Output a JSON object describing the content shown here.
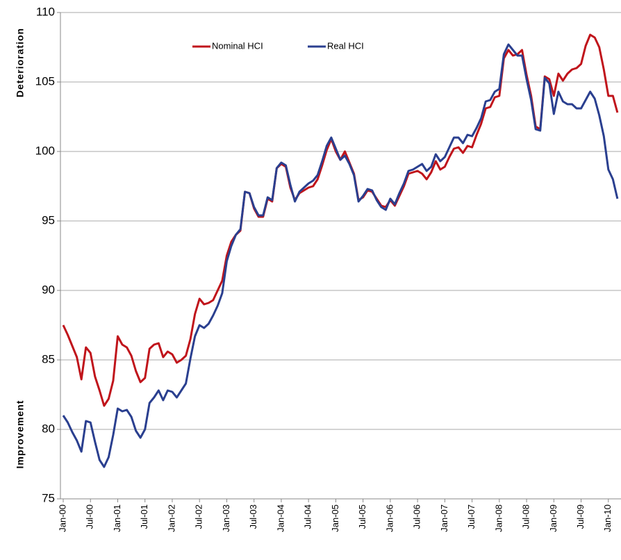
{
  "chart_data": {
    "type": "line",
    "axis_labels": [
      "Deterioration",
      "Improvement"
    ],
    "categories": [
      "Jan-00",
      null,
      null,
      null,
      null,
      null,
      "Jul-00",
      null,
      null,
      null,
      null,
      null,
      "Jan-01",
      null,
      null,
      null,
      null,
      null,
      "Jul-01",
      null,
      null,
      null,
      null,
      null,
      "Jan-02",
      null,
      null,
      null,
      null,
      null,
      "Jul-02",
      null,
      null,
      null,
      null,
      null,
      "Jan-03",
      null,
      null,
      null,
      null,
      null,
      "Jul-03",
      null,
      null,
      null,
      null,
      null,
      "Jan-04",
      null,
      null,
      null,
      null,
      null,
      "Jul-04",
      null,
      null,
      null,
      null,
      null,
      "Jan-05",
      null,
      null,
      null,
      null,
      null,
      "Jul-05",
      null,
      null,
      null,
      null,
      null,
      "Jan-06",
      null,
      null,
      null,
      null,
      null,
      "Jul-06",
      null,
      null,
      null,
      null,
      null,
      "Jan-07",
      null,
      null,
      null,
      null,
      null,
      "Jul-07",
      null,
      null,
      null,
      null,
      null,
      "Jan-08",
      null,
      null,
      null,
      null,
      null,
      "Jul-08",
      null,
      null,
      null,
      null,
      null,
      "Jan-09",
      null,
      null,
      null,
      null,
      null,
      "Jul-09",
      null,
      null,
      null,
      null,
      null,
      "Jan-10",
      null,
      null
    ],
    "series": [
      {
        "name": "Nominal HCI",
        "color": "#c0141b",
        "values": [
          87.5,
          86.8,
          86.0,
          85.2,
          83.6,
          85.9,
          85.5,
          83.8,
          82.8,
          81.7,
          82.2,
          83.5,
          86.7,
          86.1,
          85.9,
          85.3,
          84.2,
          83.4,
          83.7,
          85.8,
          86.1,
          86.2,
          85.2,
          85.6,
          85.4,
          84.8,
          85.0,
          85.3,
          86.5,
          88.3,
          89.4,
          89.0,
          89.1,
          89.3,
          90.0,
          90.7,
          92.5,
          93.5,
          94.0,
          94.3,
          97.1,
          97.0,
          95.9,
          95.3,
          95.3,
          96.6,
          96.4,
          98.8,
          99.1,
          98.9,
          97.4,
          96.5,
          97.0,
          97.2,
          97.4,
          97.5,
          98.0,
          99.0,
          100.1,
          100.9,
          100.0,
          99.4,
          100.0,
          99.2,
          98.4,
          96.5,
          96.7,
          97.2,
          97.1,
          96.6,
          96.1,
          96.0,
          96.5,
          96.1,
          96.8,
          97.5,
          98.4,
          98.5,
          98.6,
          98.4,
          98.0,
          98.5,
          99.3,
          98.7,
          98.9,
          99.6,
          100.2,
          100.3,
          99.9,
          100.4,
          100.3,
          101.2,
          102.0,
          103.1,
          103.2,
          103.9,
          104.0,
          106.7,
          107.3,
          106.9,
          107.0,
          107.3,
          105.5,
          104.0,
          101.8,
          101.6,
          105.4,
          105.2,
          104.0,
          105.6,
          105.1,
          105.6,
          105.9,
          106.0,
          106.3,
          107.6,
          108.4,
          108.2,
          107.5,
          105.9,
          104.0,
          104.0,
          102.8
        ]
      },
      {
        "name": "Real HCI",
        "color": "#2a3f8f",
        "values": [
          81.0,
          80.5,
          79.8,
          79.2,
          78.4,
          80.6,
          80.5,
          79.1,
          77.8,
          77.3,
          78.0,
          79.6,
          81.5,
          81.3,
          81.4,
          80.9,
          79.9,
          79.4,
          80.0,
          81.9,
          82.3,
          82.8,
          82.1,
          82.8,
          82.7,
          82.3,
          82.8,
          83.3,
          85.1,
          86.7,
          87.5,
          87.3,
          87.6,
          88.2,
          88.9,
          89.8,
          92.1,
          93.2,
          94.0,
          94.4,
          97.1,
          97.0,
          96.0,
          95.4,
          95.4,
          96.7,
          96.5,
          98.8,
          99.2,
          99.0,
          97.6,
          96.4,
          97.1,
          97.4,
          97.7,
          97.9,
          98.3,
          99.3,
          100.4,
          101.0,
          100.2,
          99.4,
          99.7,
          99.1,
          98.3,
          96.4,
          96.8,
          97.3,
          97.2,
          96.5,
          96.0,
          95.8,
          96.6,
          96.2,
          97.0,
          97.7,
          98.6,
          98.7,
          98.9,
          99.1,
          98.6,
          98.9,
          99.8,
          99.3,
          99.6,
          100.3,
          101.0,
          101.0,
          100.6,
          101.2,
          101.1,
          101.7,
          102.4,
          103.6,
          103.7,
          104.3,
          104.5,
          107.0,
          107.7,
          107.3,
          106.9,
          106.9,
          105.2,
          103.7,
          101.6,
          101.5,
          105.3,
          104.9,
          102.7,
          104.3,
          103.6,
          103.4,
          103.4,
          103.1,
          103.1,
          103.7,
          104.3,
          103.8,
          102.6,
          101.1,
          98.7,
          98.0,
          96.6
        ]
      }
    ],
    "ylim": [
      75,
      110
    ],
    "yticks": [
      75,
      80,
      85,
      90,
      95,
      100,
      105,
      110
    ],
    "grid": true,
    "legend": "top"
  }
}
